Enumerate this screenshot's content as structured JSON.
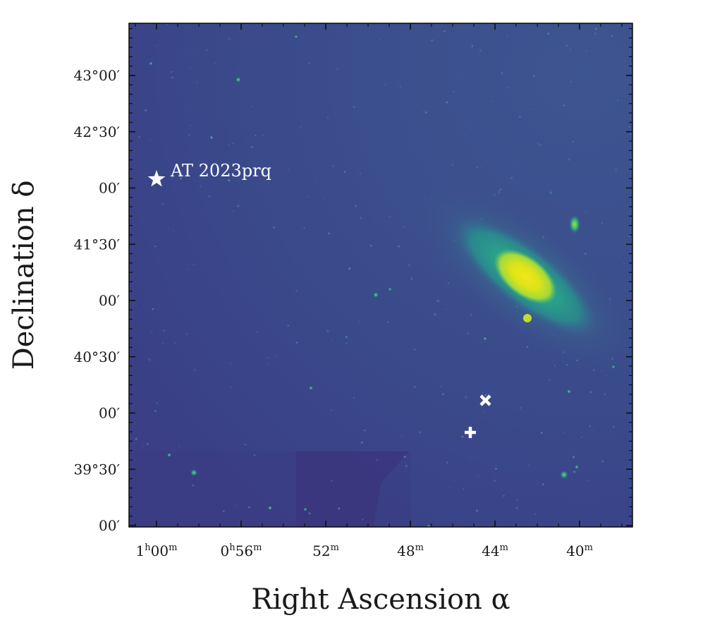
{
  "colors": {
    "background": "#3b4d8c",
    "core": "#e3e419",
    "disk": "#2fae8a",
    "marker": "#ffffff"
  },
  "axes": {
    "xlabel": "Right Ascension α",
    "ylabel": "Declination δ"
  },
  "x_ticks": [
    {
      "hours": 1,
      "minutes": 0,
      "main": "1",
      "sup1": "h",
      "mid": "00",
      "sup2": "m"
    },
    {
      "hours": 0,
      "minutes": 56,
      "main": "0",
      "sup1": "h",
      "mid": "56",
      "sup2": "m"
    },
    {
      "minutes": 52,
      "main": "",
      "sup1": "",
      "mid": "52",
      "sup2": "m"
    },
    {
      "minutes": 48,
      "main": "",
      "sup1": "",
      "mid": "48",
      "sup2": "m"
    },
    {
      "minutes": 44,
      "main": "",
      "sup1": "",
      "mid": "44",
      "sup2": "m"
    },
    {
      "minutes": 40,
      "main": "",
      "sup1": "",
      "mid": "40",
      "sup2": "m"
    }
  ],
  "y_ticks": [
    {
      "deg": 43.0,
      "label": "43°00′"
    },
    {
      "deg": 42.5,
      "label": "42°30′"
    },
    {
      "deg": 42.0,
      "label": "00′"
    },
    {
      "deg": 41.5,
      "label": "41°30′"
    },
    {
      "deg": 41.0,
      "label": "00′"
    },
    {
      "deg": 40.5,
      "label": "40°30′"
    },
    {
      "deg": 40.0,
      "label": "00′"
    },
    {
      "deg": 39.5,
      "label": "39°30′"
    },
    {
      "deg": 39.0,
      "label": "00′"
    }
  ],
  "annotations": {
    "transient_label": "AT 2023prq",
    "star_icon": "star-icon",
    "cross_icon": "x-marker-icon",
    "plus_icon": "plus-marker-icon"
  }
}
